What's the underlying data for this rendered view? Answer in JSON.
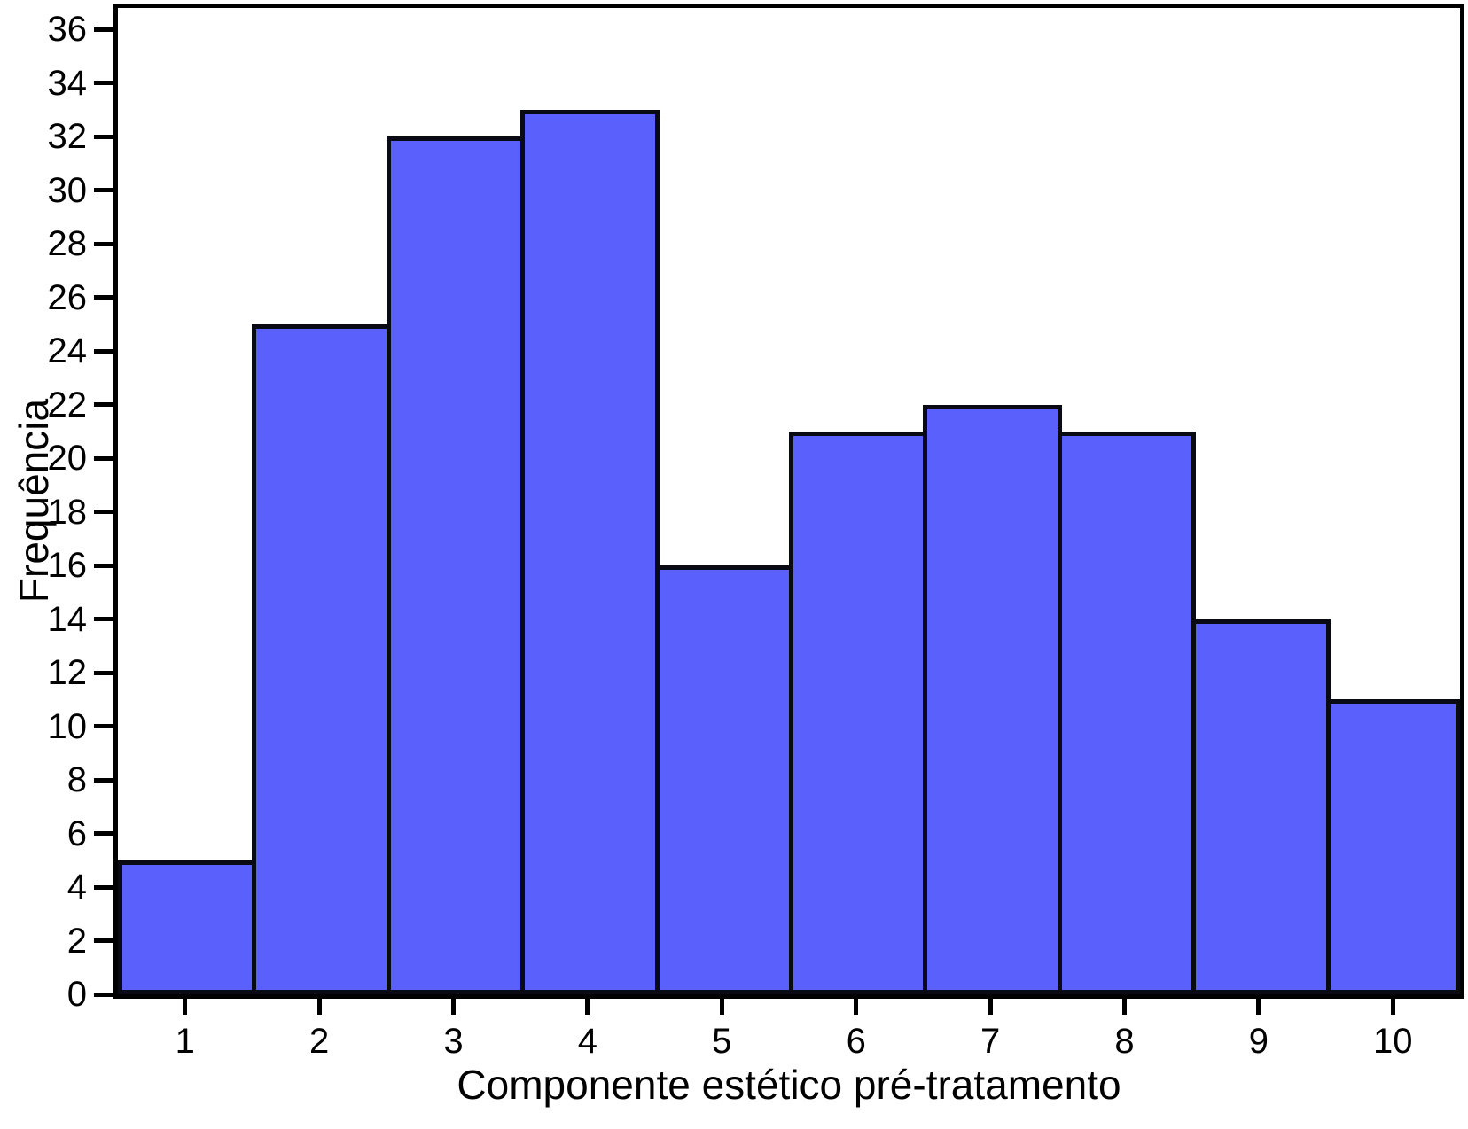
{
  "chart_data": {
    "type": "bar",
    "subtype": "histogram",
    "title": "",
    "xlabel": "Componente estético pré-tratamento",
    "ylabel": "Frequência",
    "categories": [
      1,
      2,
      3,
      4,
      5,
      6,
      7,
      8,
      9,
      10
    ],
    "values": [
      5,
      25,
      32,
      33,
      16,
      21,
      22,
      21,
      14,
      11
    ],
    "yticks": [
      0,
      2,
      4,
      6,
      8,
      10,
      12,
      14,
      16,
      18,
      20,
      22,
      24,
      26,
      28,
      30,
      32,
      34,
      36
    ],
    "ylim": [
      0,
      36.8
    ],
    "xlim": [
      0.5,
      10.5
    ],
    "grid": false,
    "legend_position": "none",
    "bar_gap": 0
  },
  "colors": {
    "bar_fill": "#5A60FC",
    "bar_edge": "#0A0A14",
    "axis": "#000000",
    "text": "#000000",
    "background": "#FFFFFF"
  }
}
